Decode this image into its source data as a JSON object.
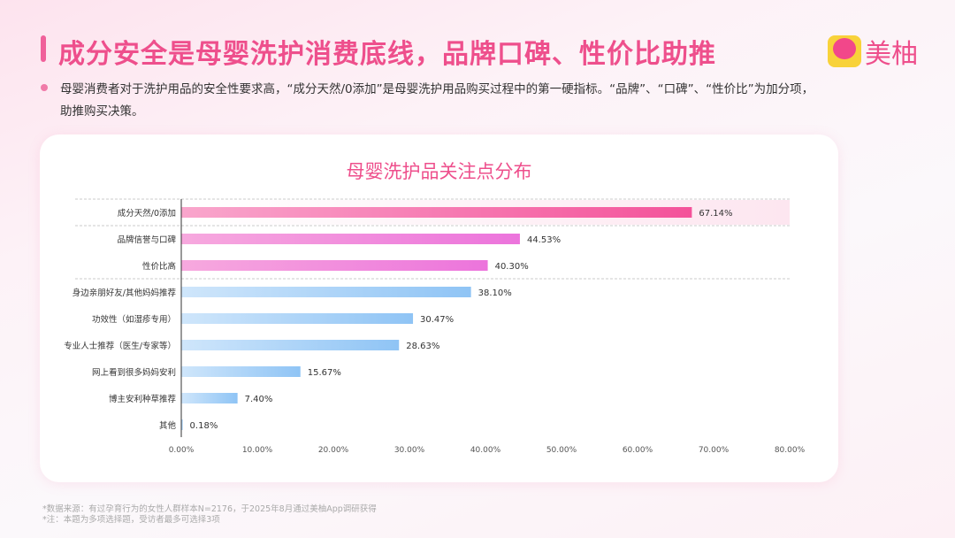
{
  "header": {
    "title": "成分安全是母婴洗护消费底线，品牌口碑、性价比助推",
    "logo_text": "美柚"
  },
  "description": "母婴消费者对于洗护用品的安全性要求高，“成分天然/0添加”是母婴洗护用品购买过程中的第一硬指标。“品牌”、“口碑”、“性价比”为加分项，助推购买决策。",
  "chart_data": {
    "type": "bar",
    "orientation": "horizontal",
    "title": "母婴洗护品关注点分布",
    "categories": [
      "成分天然/0添加",
      "品牌信誉与口碑",
      "性价比高",
      "身边亲朋好友/其他妈妈推荐",
      "功效性（如湿疹专用）",
      "专业人士推荐（医生/专家等）",
      "网上看到很多妈妈安利",
      "博主安利种草推荐",
      "其他"
    ],
    "values": [
      67.14,
      44.53,
      40.3,
      38.1,
      30.47,
      28.63,
      15.67,
      7.4,
      0.18
    ],
    "value_labels": [
      "67.14%",
      "44.53%",
      "40.30%",
      "38.10%",
      "30.47%",
      "28.63%",
      "15.67%",
      "7.40%",
      "0.18%"
    ],
    "xlim": [
      0,
      80
    ],
    "xticks": [
      "0.00%",
      "10.00%",
      "20.00%",
      "30.00%",
      "40.00%",
      "50.00%",
      "60.00%",
      "70.00%",
      "80.00%"
    ],
    "highlight_count": 3,
    "colors": {
      "top1": "#f4529a",
      "top": "#ee7fe0",
      "rest": "#9fcdf7"
    }
  },
  "footnotes": [
    "*数据来源：有过孕育行为的女性人群样本N=2176，于2025年8月通过美柚App调研获得",
    "*注：本题为多项选择题，受访者最多可选择3项"
  ]
}
